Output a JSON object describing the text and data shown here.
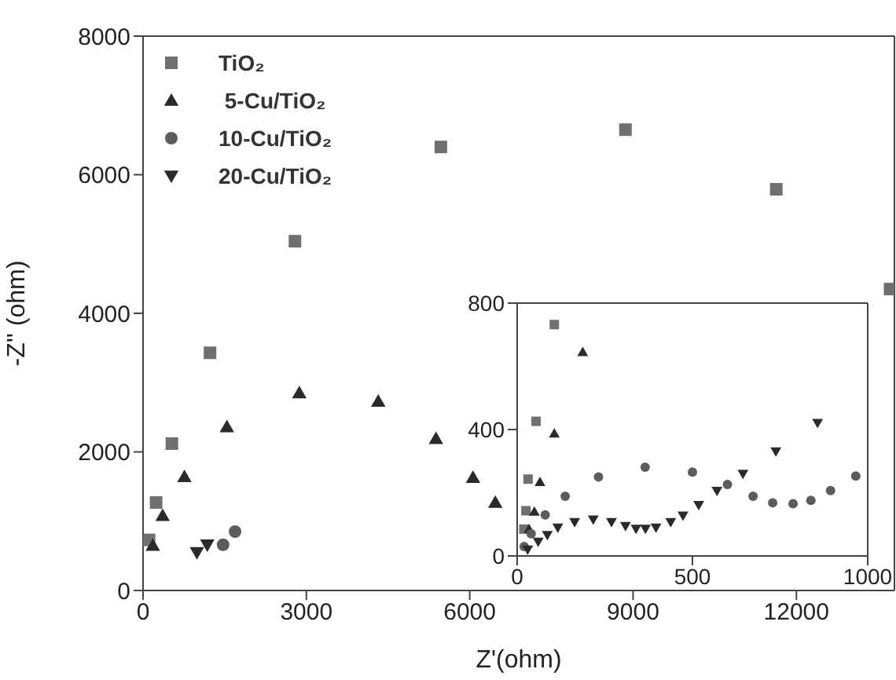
{
  "chart_data": [
    {
      "type": "scatter",
      "xlabel": "Z'(ohm)",
      "ylabel": "-Z'' (ohm)",
      "xlim": [
        0,
        13800
      ],
      "xticks": [
        0,
        3000,
        6000,
        9000,
        12000
      ],
      "ylim": [
        0,
        8000
      ],
      "yticks": [
        0,
        2000,
        4000,
        6000,
        8000
      ],
      "legend": "top left",
      "series": [
        {
          "name": "TiO₂",
          "color": "#707070",
          "marker": "square",
          "x": [
            110,
            240,
            530,
            1230,
            2790,
            5470,
            8860,
            11630,
            13720
          ],
          "values": [
            730,
            1270,
            2120,
            3430,
            5040,
            6400,
            6650,
            5790,
            4350
          ]
        },
        {
          "name": " 5-Cu/TiO₂",
          "color": "#2a2a2a",
          "marker": "triangle",
          "x": [
            180,
            360,
            760,
            1540,
            2870,
            4320,
            5380,
            6060,
            6470
          ],
          "values": [
            650,
            1080,
            1640,
            2360,
            2850,
            2730,
            2190,
            1630,
            1270
          ]
        },
        {
          "name": "10-Cu/TiO₂",
          "color": "#5c5c5c",
          "marker": "circle",
          "x": [
            1470,
            1690
          ],
          "values": [
            660,
            850
          ]
        },
        {
          "name": "20-Cu/TiO₂",
          "color": "#2a2a2a",
          "marker": "triangle-down",
          "x": [
            990,
            1180
          ],
          "values": [
            550,
            660
          ]
        }
      ]
    },
    {
      "type": "scatter",
      "xlim": [
        0,
        1000
      ],
      "xticks": [
        0,
        500,
        1000
      ],
      "ylim": [
        0,
        800
      ],
      "yticks": [
        0,
        400,
        800
      ],
      "series": [
        {
          "color": "#707070",
          "marker": "square",
          "x": [
            19,
            25,
            31,
            54,
            106
          ],
          "values": [
            85,
            143,
            243,
            426,
            732
          ]
        },
        {
          "color": "#2a2a2a",
          "marker": "triangle",
          "x": [
            34,
            49,
            65,
            106,
            187
          ],
          "values": [
            85,
            140,
            234,
            387,
            645
          ]
        },
        {
          "color": "#5c5c5c",
          "marker": "circle",
          "x": [
            20,
            40,
            80,
            137,
            232,
            365,
            500,
            600,
            673,
            729,
            787,
            838,
            894,
            966
          ],
          "values": [
            30,
            70,
            130,
            189,
            250,
            281,
            265,
            226,
            189,
            168,
            165,
            176,
            207,
            253
          ]
        },
        {
          "color": "#2a2a2a",
          "marker": "triangle-down",
          "x": [
            30,
            60,
            86,
            116,
            164,
            217,
            269,
            309,
            339,
            366,
            396,
            438,
            473,
            518,
            570,
            644,
            738,
            857
          ],
          "values": [
            20,
            45,
            66,
            90,
            107,
            115,
            107,
            95,
            86,
            86,
            90,
            107,
            128,
            161,
            206,
            260,
            331,
            421
          ]
        }
      ]
    }
  ]
}
